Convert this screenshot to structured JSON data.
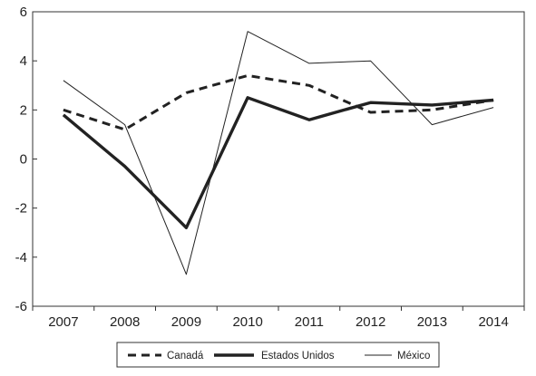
{
  "chart_data": {
    "type": "line",
    "title": "",
    "xlabel": "",
    "ylabel": "",
    "x": [
      "2007",
      "2008",
      "2009",
      "2010",
      "2011",
      "2012",
      "2013",
      "2014"
    ],
    "ylim": [
      -6,
      6
    ],
    "yticks": [
      "6",
      "4",
      "2",
      "0",
      "-2",
      "-4",
      "-6"
    ],
    "grid": false,
    "legend_position": "bottom",
    "series": [
      {
        "name": "Canadá",
        "values": [
          2.0,
          1.2,
          2.7,
          3.4,
          3.0,
          1.9,
          2.0,
          2.4
        ],
        "color": "#222222",
        "style": "dashed"
      },
      {
        "name": "Estados Unidos",
        "values": [
          1.8,
          -0.3,
          -2.8,
          2.5,
          1.6,
          2.3,
          2.2,
          2.4
        ],
        "color": "#222222",
        "style": "solid-thick"
      },
      {
        "name": "México",
        "values": [
          3.2,
          1.4,
          -4.7,
          5.2,
          3.9,
          4.0,
          1.4,
          2.1
        ],
        "color": "#222222",
        "style": "solid-thin"
      }
    ]
  }
}
